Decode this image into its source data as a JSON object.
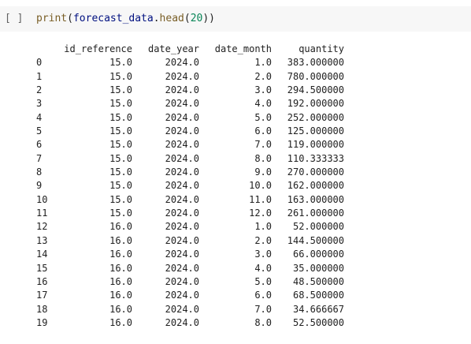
{
  "cell": {
    "run_label": "[ ]",
    "code": {
      "fn": "print",
      "open": "(",
      "var": "forecast_data",
      "dot": ".",
      "method": "head",
      "open2": "(",
      "arg": "20",
      "close": "))"
    }
  },
  "output": {
    "columns": [
      "id_reference",
      "date_year",
      "date_month",
      "quantity"
    ],
    "rows": [
      {
        "index": "0",
        "id_reference": "15.0",
        "date_year": "2024.0",
        "date_month": "1.0",
        "quantity": "383.000000"
      },
      {
        "index": "1",
        "id_reference": "15.0",
        "date_year": "2024.0",
        "date_month": "2.0",
        "quantity": "780.000000"
      },
      {
        "index": "2",
        "id_reference": "15.0",
        "date_year": "2024.0",
        "date_month": "3.0",
        "quantity": "294.500000"
      },
      {
        "index": "3",
        "id_reference": "15.0",
        "date_year": "2024.0",
        "date_month": "4.0",
        "quantity": "192.000000"
      },
      {
        "index": "4",
        "id_reference": "15.0",
        "date_year": "2024.0",
        "date_month": "5.0",
        "quantity": "252.000000"
      },
      {
        "index": "5",
        "id_reference": "15.0",
        "date_year": "2024.0",
        "date_month": "6.0",
        "quantity": "125.000000"
      },
      {
        "index": "6",
        "id_reference": "15.0",
        "date_year": "2024.0",
        "date_month": "7.0",
        "quantity": "119.000000"
      },
      {
        "index": "7",
        "id_reference": "15.0",
        "date_year": "2024.0",
        "date_month": "8.0",
        "quantity": "110.333333"
      },
      {
        "index": "8",
        "id_reference": "15.0",
        "date_year": "2024.0",
        "date_month": "9.0",
        "quantity": "270.000000"
      },
      {
        "index": "9",
        "id_reference": "15.0",
        "date_year": "2024.0",
        "date_month": "10.0",
        "quantity": "162.000000"
      },
      {
        "index": "10",
        "id_reference": "15.0",
        "date_year": "2024.0",
        "date_month": "11.0",
        "quantity": "163.000000"
      },
      {
        "index": "11",
        "id_reference": "15.0",
        "date_year": "2024.0",
        "date_month": "12.0",
        "quantity": "261.000000"
      },
      {
        "index": "12",
        "id_reference": "16.0",
        "date_year": "2024.0",
        "date_month": "1.0",
        "quantity": "52.000000"
      },
      {
        "index": "13",
        "id_reference": "16.0",
        "date_year": "2024.0",
        "date_month": "2.0",
        "quantity": "144.500000"
      },
      {
        "index": "14",
        "id_reference": "16.0",
        "date_year": "2024.0",
        "date_month": "3.0",
        "quantity": "66.000000"
      },
      {
        "index": "15",
        "id_reference": "16.0",
        "date_year": "2024.0",
        "date_month": "4.0",
        "quantity": "35.000000"
      },
      {
        "index": "16",
        "id_reference": "16.0",
        "date_year": "2024.0",
        "date_month": "5.0",
        "quantity": "48.500000"
      },
      {
        "index": "17",
        "id_reference": "16.0",
        "date_year": "2024.0",
        "date_month": "6.0",
        "quantity": "68.500000"
      },
      {
        "index": "18",
        "id_reference": "16.0",
        "date_year": "2024.0",
        "date_month": "7.0",
        "quantity": "34.666667"
      },
      {
        "index": "19",
        "id_reference": "16.0",
        "date_year": "2024.0",
        "date_month": "8.0",
        "quantity": "52.500000"
      }
    ]
  }
}
